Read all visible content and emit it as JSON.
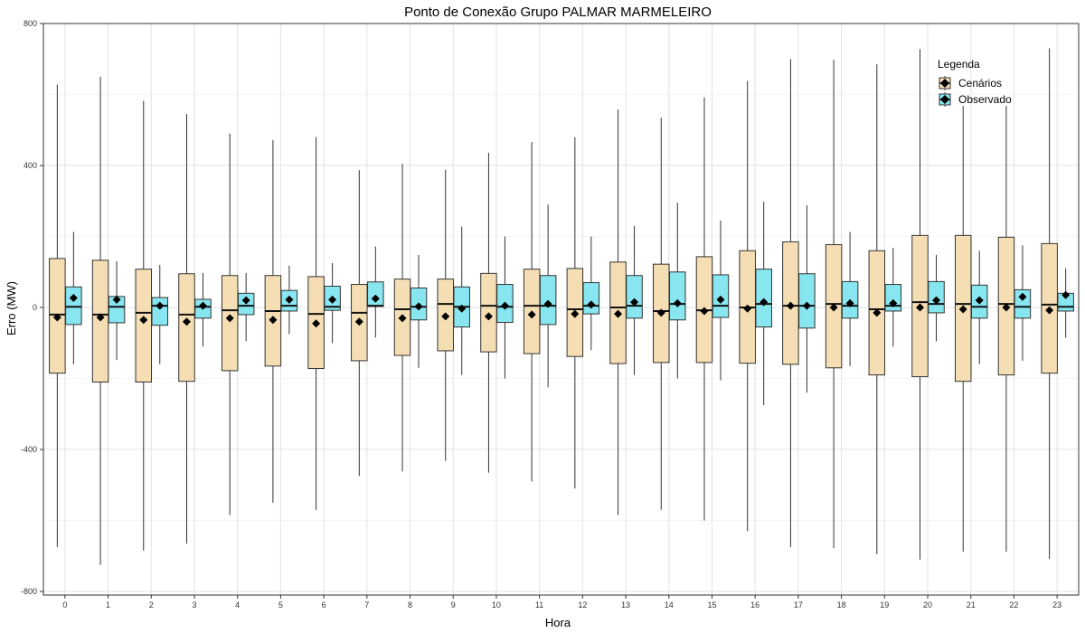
{
  "chart_data": {
    "type": "box",
    "title": "Ponto de Conexão Grupo PALMAR MARMELEIRO",
    "xlabel": "Hora",
    "ylabel": "Erro (MW)",
    "ylim": [
      -810,
      800
    ],
    "yticks": [
      800,
      400,
      0,
      -400,
      -800
    ],
    "categories": [
      "0",
      "1",
      "2",
      "3",
      "4",
      "5",
      "6",
      "7",
      "8",
      "9",
      "10",
      "11",
      "12",
      "13",
      "14",
      "15",
      "16",
      "17",
      "18",
      "19",
      "20",
      "21",
      "22",
      "23"
    ],
    "grid": true,
    "legend": {
      "title": "Legenda",
      "position": "top-right"
    },
    "series": [
      {
        "name": "Cenários",
        "color": "#f5deb3",
        "boxes": [
          {
            "min": -675,
            "q1": -185,
            "median": -20,
            "q3": 138,
            "max": 628,
            "mean": -28
          },
          {
            "min": -725,
            "q1": -210,
            "median": -20,
            "q3": 133,
            "max": 650,
            "mean": -28
          },
          {
            "min": -685,
            "q1": -210,
            "median": -15,
            "q3": 108,
            "max": 582,
            "mean": -35
          },
          {
            "min": -665,
            "q1": -208,
            "median": -20,
            "q3": 95,
            "max": 545,
            "mean": -40
          },
          {
            "min": -585,
            "q1": -178,
            "median": -8,
            "q3": 90,
            "max": 490,
            "mean": -30
          },
          {
            "min": -550,
            "q1": -165,
            "median": -10,
            "q3": 90,
            "max": 472,
            "mean": -35
          },
          {
            "min": -570,
            "q1": -172,
            "median": -18,
            "q3": 87,
            "max": 480,
            "mean": -45
          },
          {
            "min": -475,
            "q1": -150,
            "median": -15,
            "q3": 65,
            "max": 387,
            "mean": -40
          },
          {
            "min": -462,
            "q1": -135,
            "median": -5,
            "q3": 80,
            "max": 405,
            "mean": -30
          },
          {
            "min": -432,
            "q1": -122,
            "median": 10,
            "q3": 80,
            "max": 388,
            "mean": -25
          },
          {
            "min": -465,
            "q1": -125,
            "median": 5,
            "q3": 96,
            "max": 436,
            "mean": -25
          },
          {
            "min": -490,
            "q1": -130,
            "median": 5,
            "q3": 108,
            "max": 466,
            "mean": -20
          },
          {
            "min": -510,
            "q1": -138,
            "median": -5,
            "q3": 110,
            "max": 480,
            "mean": -18
          },
          {
            "min": -585,
            "q1": -158,
            "median": 0,
            "q3": 128,
            "max": 558,
            "mean": -18
          },
          {
            "min": -570,
            "q1": -155,
            "median": -10,
            "q3": 122,
            "max": 535,
            "mean": -15
          },
          {
            "min": -600,
            "q1": -155,
            "median": -8,
            "q3": 143,
            "max": 592,
            "mean": -10
          },
          {
            "min": -630,
            "q1": -157,
            "median": 0,
            "q3": 160,
            "max": 638,
            "mean": -3
          },
          {
            "min": -675,
            "q1": -160,
            "median": 5,
            "q3": 185,
            "max": 700,
            "mean": 5
          },
          {
            "min": -678,
            "q1": -170,
            "median": 10,
            "q3": 177,
            "max": 698,
            "mean": 0
          },
          {
            "min": -695,
            "q1": -190,
            "median": -5,
            "q3": 160,
            "max": 685,
            "mean": -15
          },
          {
            "min": -710,
            "q1": -195,
            "median": 15,
            "q3": 203,
            "max": 728,
            "mean": 0
          },
          {
            "min": -688,
            "q1": -208,
            "median": 10,
            "q3": 203,
            "max": 568,
            "mean": -5
          },
          {
            "min": -688,
            "q1": -190,
            "median": 10,
            "q3": 198,
            "max": 568,
            "mean": 0
          },
          {
            "min": -708,
            "q1": -185,
            "median": 8,
            "q3": 180,
            "max": 730,
            "mean": -8
          }
        ]
      },
      {
        "name": "Observado",
        "color": "#87e6f0",
        "boxes": [
          {
            "min": -160,
            "q1": -48,
            "median": 2,
            "q3": 58,
            "max": 213,
            "mean": 27
          },
          {
            "min": -148,
            "q1": -43,
            "median": 2,
            "q3": 31,
            "max": 130,
            "mean": 22
          },
          {
            "min": -160,
            "q1": -50,
            "median": 5,
            "q3": 28,
            "max": 120,
            "mean": 5
          },
          {
            "min": -110,
            "q1": -30,
            "median": 2,
            "q3": 23,
            "max": 97,
            "mean": 5
          },
          {
            "min": -95,
            "q1": -20,
            "median": 5,
            "q3": 40,
            "max": 97,
            "mean": 20
          },
          {
            "min": -75,
            "q1": -10,
            "median": 5,
            "q3": 48,
            "max": 118,
            "mean": 22
          },
          {
            "min": -100,
            "q1": -8,
            "median": 2,
            "q3": 60,
            "max": 125,
            "mean": 22
          },
          {
            "min": -85,
            "q1": 3,
            "median": 5,
            "q3": 72,
            "max": 172,
            "mean": 25
          },
          {
            "min": -170,
            "q1": -35,
            "median": 2,
            "q3": 55,
            "max": 148,
            "mean": 3
          },
          {
            "min": -190,
            "q1": -55,
            "median": 2,
            "q3": 58,
            "max": 228,
            "mean": -3
          },
          {
            "min": -200,
            "q1": -42,
            "median": 2,
            "q3": 65,
            "max": 200,
            "mean": 5
          },
          {
            "min": -225,
            "q1": -48,
            "median": 5,
            "q3": 90,
            "max": 290,
            "mean": 10
          },
          {
            "min": -120,
            "q1": -18,
            "median": 5,
            "q3": 70,
            "max": 200,
            "mean": 8
          },
          {
            "min": -190,
            "q1": -30,
            "median": 5,
            "q3": 90,
            "max": 230,
            "mean": 15
          },
          {
            "min": -200,
            "q1": -35,
            "median": 10,
            "q3": 100,
            "max": 295,
            "mean": 12
          },
          {
            "min": -205,
            "q1": -28,
            "median": 5,
            "q3": 92,
            "max": 245,
            "mean": 22
          },
          {
            "min": -275,
            "q1": -55,
            "median": 10,
            "q3": 108,
            "max": 298,
            "mean": 15
          },
          {
            "min": -240,
            "q1": -58,
            "median": 5,
            "q3": 95,
            "max": 288,
            "mean": 5
          },
          {
            "min": -165,
            "q1": -30,
            "median": 5,
            "q3": 73,
            "max": 213,
            "mean": 12
          },
          {
            "min": -110,
            "q1": -10,
            "median": 5,
            "q3": 65,
            "max": 168,
            "mean": 12
          },
          {
            "min": -95,
            "q1": -15,
            "median": 10,
            "q3": 73,
            "max": 148,
            "mean": 20
          },
          {
            "min": -160,
            "q1": -30,
            "median": 2,
            "q3": 63,
            "max": 160,
            "mean": 20
          },
          {
            "min": -150,
            "q1": -30,
            "median": 2,
            "q3": 50,
            "max": 175,
            "mean": 30
          },
          {
            "min": -85,
            "q1": -10,
            "median": 2,
            "q3": 40,
            "max": 110,
            "mean": 35
          }
        ]
      }
    ]
  }
}
